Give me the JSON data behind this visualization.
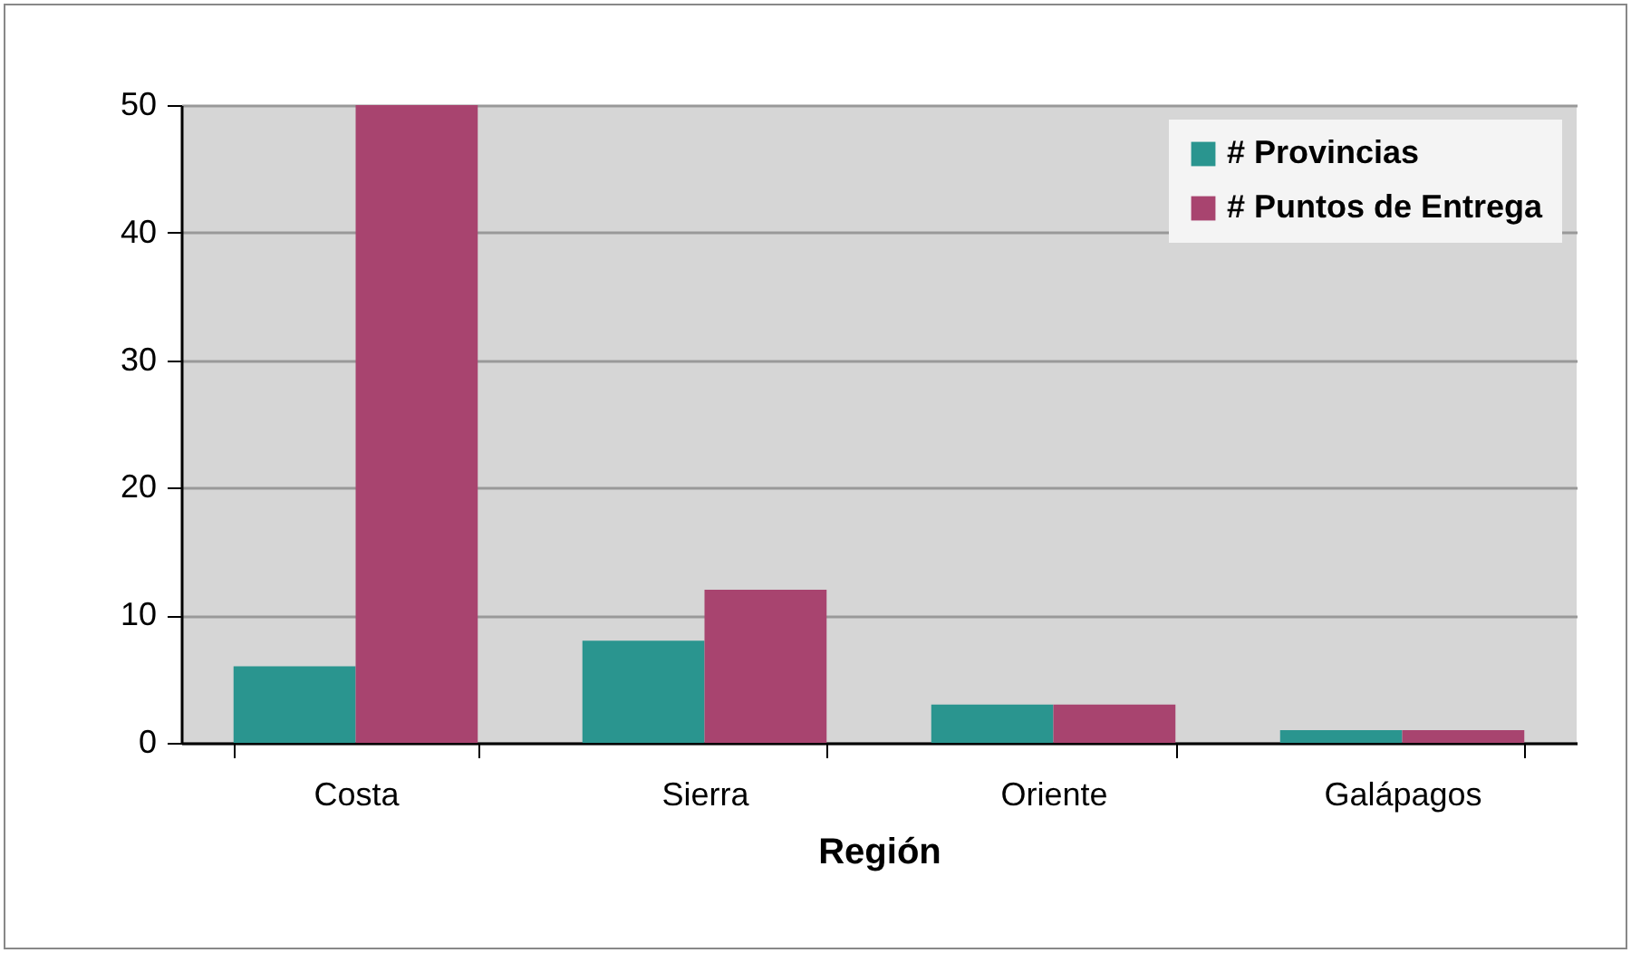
{
  "chart_data": {
    "type": "bar",
    "xlabel": "Región",
    "categories": [
      "Costa",
      "Sierra",
      "Oriente",
      "Galápagos"
    ],
    "series": [
      {
        "name": "# Provincias",
        "color": "#2a958f",
        "values": [
          6,
          8,
          3,
          1
        ]
      },
      {
        "name": "# Puntos de Entrega",
        "color": "#a8446f",
        "values": [
          50,
          12,
          3,
          1
        ]
      }
    ],
    "ylim": [
      0,
      50
    ],
    "yticks": [
      0,
      10,
      20,
      30,
      40,
      50
    ],
    "grid": "y",
    "legend": "top right"
  }
}
